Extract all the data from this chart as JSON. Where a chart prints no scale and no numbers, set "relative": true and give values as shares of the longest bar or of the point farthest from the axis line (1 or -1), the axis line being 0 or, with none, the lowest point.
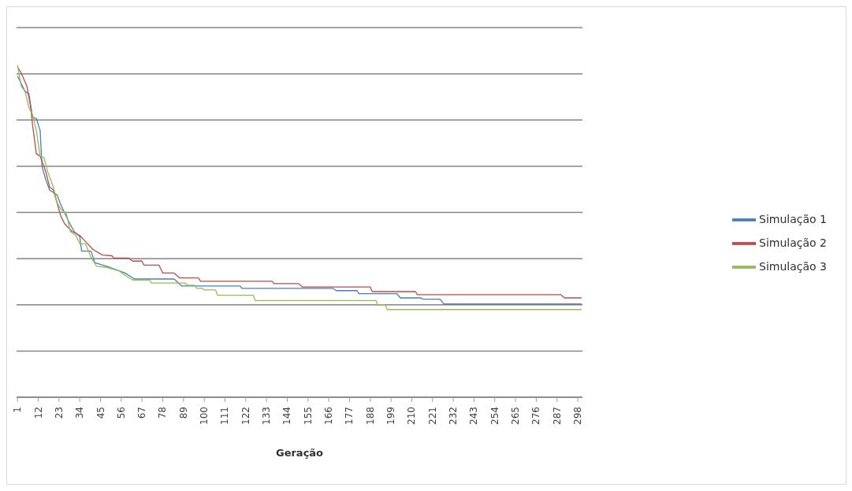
{
  "chart_data": {
    "type": "line",
    "xlabel": "Geração",
    "relative": true,
    "grid": "y",
    "legend": "right",
    "xlim": [
      0.5,
      300.5
    ],
    "xticks": [
      1,
      12,
      23,
      34,
      45,
      56,
      67,
      78,
      89,
      100,
      111,
      122,
      133,
      144,
      155,
      166,
      177,
      188,
      199,
      210,
      221,
      232,
      243,
      254,
      265,
      276,
      287,
      298
    ],
    "series": [
      {
        "name": "Simulação 1",
        "color": "#4a7ebb",
        "x": [
          1,
          5,
          7,
          9,
          11,
          13,
          14,
          16,
          18,
          22,
          24,
          28,
          31,
          34,
          35,
          40,
          42,
          50,
          58,
          63,
          84,
          88,
          119,
          120,
          168,
          170,
          181,
          182,
          202,
          204,
          215,
          216,
          225,
          227,
          300
        ],
        "values": [
          0.967,
          0.921,
          0.914,
          0.843,
          0.839,
          0.803,
          0.695,
          0.655,
          0.624,
          0.609,
          0.579,
          0.531,
          0.499,
          0.484,
          0.44,
          0.44,
          0.405,
          0.391,
          0.374,
          0.356,
          0.356,
          0.335,
          0.335,
          0.328,
          0.328,
          0.321,
          0.321,
          0.312,
          0.312,
          0.299,
          0.299,
          0.295,
          0.295,
          0.281,
          0.281
        ]
      },
      {
        "name": "Simulação 2",
        "color": "#be4b48",
        "x": [
          1,
          3,
          6,
          8,
          9,
          11,
          13,
          16,
          18,
          20,
          24,
          26,
          30,
          34,
          37,
          41,
          46,
          51,
          52,
          60,
          62,
          67,
          68,
          76,
          78,
          84,
          87,
          97,
          98,
          136,
          137,
          150,
          152,
          188,
          189,
          212,
          213,
          289,
          291,
          300
        ],
        "values": [
          0.994,
          0.976,
          0.936,
          0.873,
          0.819,
          0.733,
          0.726,
          0.679,
          0.633,
          0.624,
          0.545,
          0.522,
          0.499,
          0.487,
          0.469,
          0.445,
          0.428,
          0.426,
          0.419,
          0.419,
          0.41,
          0.41,
          0.398,
          0.398,
          0.374,
          0.374,
          0.359,
          0.359,
          0.349,
          0.349,
          0.342,
          0.342,
          0.332,
          0.332,
          0.318,
          0.318,
          0.309,
          0.309,
          0.299,
          0.299
        ]
      },
      {
        "name": "Simulação 3",
        "color": "#98b954",
        "x": [
          1,
          3,
          5,
          7,
          9,
          11,
          13,
          15,
          17,
          20,
          22,
          24,
          27,
          29,
          32,
          34,
          37,
          40,
          43,
          48,
          55,
          59,
          62,
          71,
          72,
          90,
          91,
          95,
          96,
          99,
          100,
          106,
          107,
          126,
          127,
          191,
          192,
          196,
          197,
          300
        ],
        "values": [
          1,
          0.936,
          0.921,
          0.873,
          0.85,
          0.803,
          0.726,
          0.722,
          0.679,
          0.633,
          0.586,
          0.566,
          0.551,
          0.499,
          0.487,
          0.462,
          0.462,
          0.421,
          0.394,
          0.391,
          0.38,
          0.363,
          0.353,
          0.353,
          0.344,
          0.344,
          0.337,
          0.337,
          0.328,
          0.328,
          0.323,
          0.323,
          0.307,
          0.307,
          0.291,
          0.291,
          0.278,
          0.278,
          0.264,
          0.264
        ]
      }
    ]
  }
}
